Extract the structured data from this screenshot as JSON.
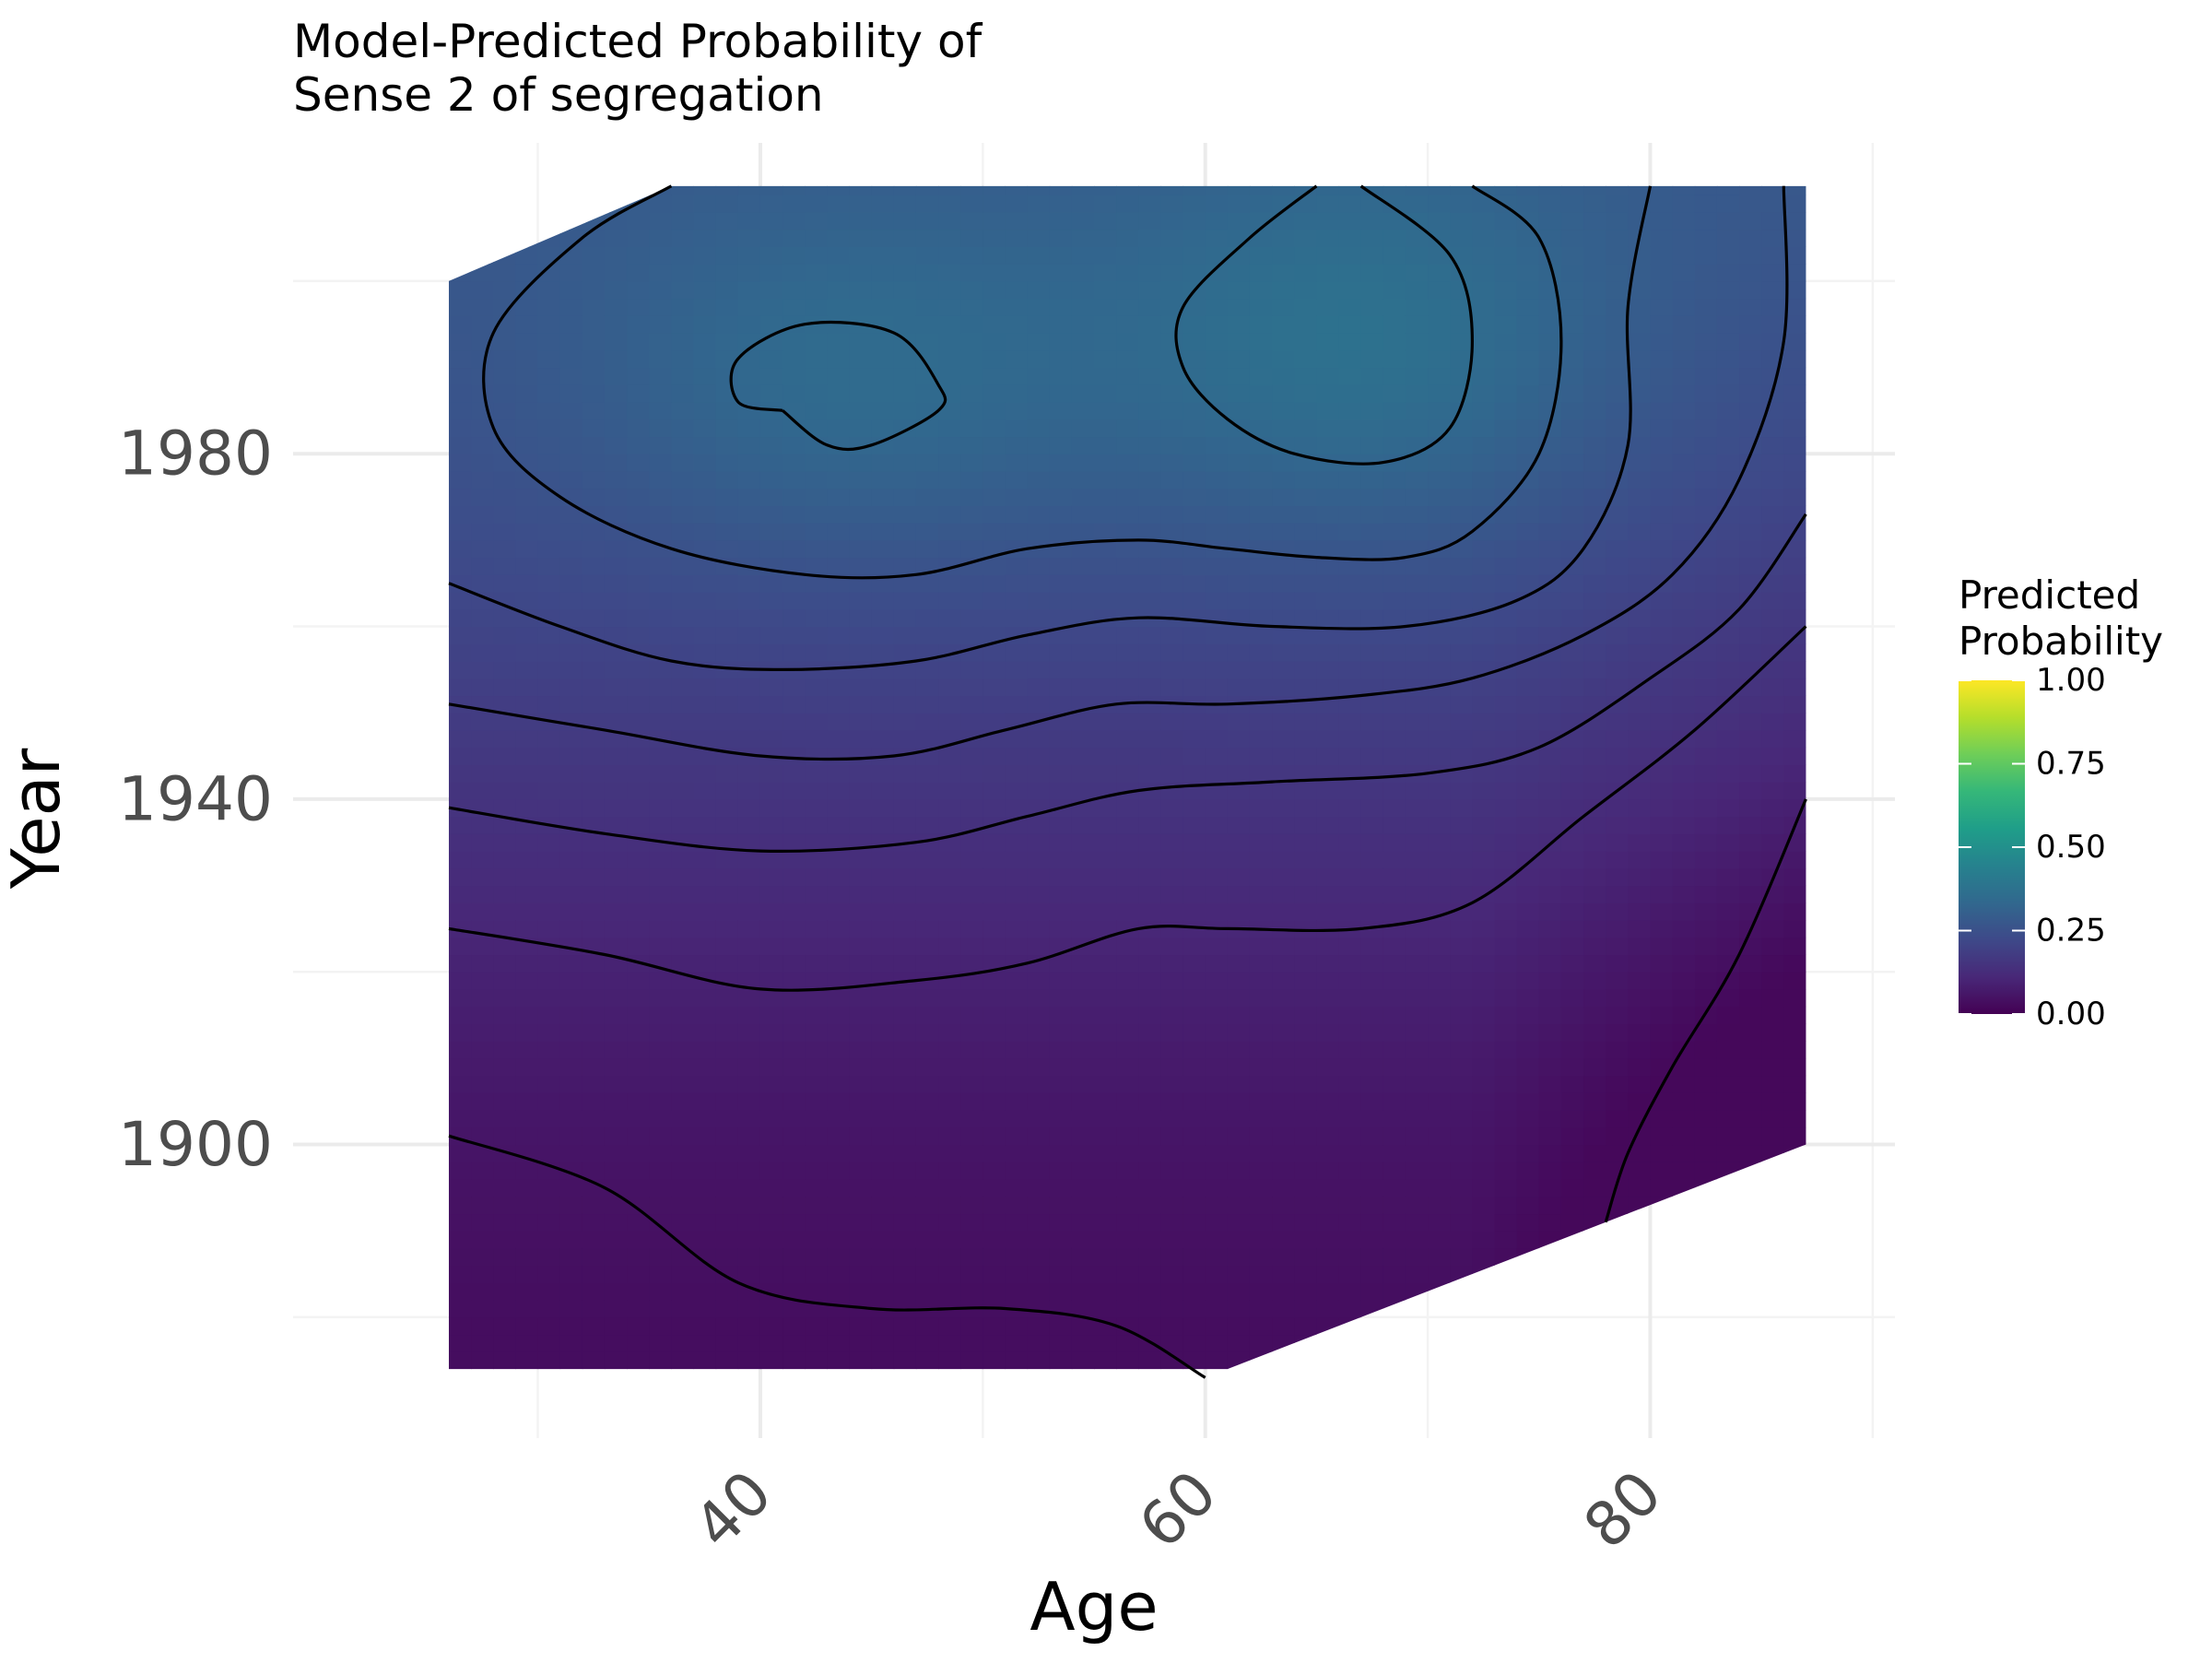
{
  "chart_data": {
    "type": "heatmap",
    "title_lines": [
      "Model-Predicted Probability of",
      "Sense 2 of segregation"
    ],
    "xlabel": "Age",
    "ylabel": "Year",
    "xlim": [
      19,
      91
    ],
    "ylim": [
      1866,
      2016
    ],
    "x_ticks": [
      40,
      60,
      80
    ],
    "y_ticks": [
      1900,
      1940,
      1980
    ],
    "grid": true,
    "fill_scale": {
      "name": "viridis",
      "colors": [
        "#440154",
        "#482878",
        "#3e4989",
        "#31688e",
        "#26828e",
        "#1f9e89",
        "#35b779",
        "#6ece58",
        "#b5de2b",
        "#fde725"
      ],
      "limits": [
        0.0,
        1.0
      ]
    },
    "legend": {
      "title_lines": [
        "Predicted",
        "Probability"
      ],
      "position": "right",
      "breaks": [
        0.0,
        0.25,
        0.5,
        0.75,
        1.0
      ],
      "labels": [
        "0.00",
        "0.25",
        "0.50",
        "0.75",
        "1.00"
      ]
    },
    "surface": {
      "age_range": [
        26,
        87
      ],
      "year_range": [
        1874,
        2011
      ],
      "approx_max_probability": 0.38,
      "approx_min_probability": 0.02
    },
    "contour_levels": [
      0.05,
      0.1,
      0.15,
      0.2,
      0.25,
      0.3,
      0.35
    ],
    "contours": [
      [
        [
          26,
          1901
        ],
        [
          33,
          1895
        ],
        [
          39,
          1884
        ],
        [
          45,
          1881
        ],
        [
          51,
          1881
        ],
        [
          56,
          1879
        ],
        [
          60,
          1873
        ]
      ],
      [
        [
          78,
          1891
        ],
        [
          79,
          1899
        ],
        [
          81,
          1909
        ],
        [
          84,
          1922
        ],
        [
          87,
          1940
        ]
      ],
      [
        [
          26,
          1925
        ],
        [
          33,
          1922
        ],
        [
          40,
          1918
        ],
        [
          47,
          1919
        ],
        [
          52,
          1921
        ],
        [
          57,
          1925
        ],
        [
          61,
          1925
        ],
        [
          67,
          1925
        ],
        [
          72,
          1928
        ],
        [
          77,
          1938
        ],
        [
          82,
          1948
        ],
        [
          87,
          1960
        ]
      ],
      [
        [
          26,
          1939
        ],
        [
          33,
          1936
        ],
        [
          40,
          1934
        ],
        [
          47,
          1935
        ],
        [
          52,
          1938
        ],
        [
          57,
          1941
        ],
        [
          63,
          1942
        ],
        [
          70,
          1943
        ],
        [
          75,
          1946
        ],
        [
          80,
          1954
        ],
        [
          84,
          1962
        ],
        [
          87,
          1973
        ]
      ],
      [
        [
          26,
          1951
        ],
        [
          33,
          1948
        ],
        [
          40,
          1945
        ],
        [
          46,
          1945
        ],
        [
          51,
          1948
        ],
        [
          56,
          1951
        ],
        [
          61,
          1951
        ],
        [
          67,
          1952
        ],
        [
          72,
          1954
        ],
        [
          77,
          1959
        ],
        [
          81,
          1966
        ],
        [
          84,
          1977
        ],
        [
          86,
          1993
        ],
        [
          86,
          2011
        ]
      ],
      [
        [
          26,
          1965
        ],
        [
          31,
          1960
        ],
        [
          36,
          1956
        ],
        [
          41,
          1955
        ],
        [
          47,
          1956
        ],
        [
          52,
          1959
        ],
        [
          57,
          1961
        ],
        [
          63,
          1960
        ],
        [
          69,
          1960
        ],
        [
          74,
          1963
        ],
        [
          77,
          1969
        ],
        [
          79,
          1981
        ],
        [
          79,
          1997
        ],
        [
          80,
          2011
        ]
      ],
      [
        [
          36,
          2011
        ],
        [
          32,
          2005
        ],
        [
          28,
          1994
        ],
        [
          28,
          1983
        ],
        [
          31,
          1975
        ],
        [
          36,
          1969
        ],
        [
          42,
          1966
        ],
        [
          47,
          1966
        ],
        [
          52,
          1969
        ],
        [
          57,
          1970
        ],
        [
          61,
          1969
        ],
        [
          65,
          1968
        ],
        [
          69,
          1968
        ],
        [
          72,
          1971
        ],
        [
          75,
          1980
        ],
        [
          76,
          1993
        ],
        [
          75,
          2005
        ],
        [
          72,
          2011
        ]
      ],
      [
        [
          41,
          1985
        ],
        [
          43,
          1981
        ],
        [
          45,
          1981
        ],
        [
          48,
          1985
        ],
        [
          48,
          1988
        ],
        [
          46,
          1994
        ],
        [
          42,
          1995
        ],
        [
          39,
          1991
        ],
        [
          39,
          1986
        ],
        [
          41,
          1985
        ]
      ],
      [
        [
          65,
          2011
        ],
        [
          62,
          2005
        ],
        [
          59,
          1997
        ],
        [
          59,
          1990
        ],
        [
          61,
          1984
        ],
        [
          64,
          1980
        ],
        [
          68,
          1979
        ],
        [
          71,
          1983
        ],
        [
          72,
          1993
        ],
        [
          71,
          2003
        ],
        [
          67,
          2011
        ]
      ]
    ]
  }
}
